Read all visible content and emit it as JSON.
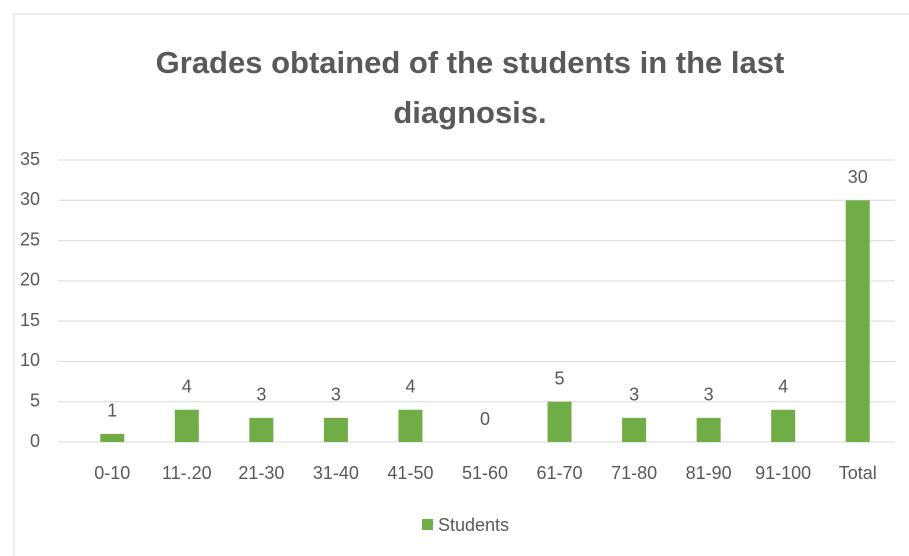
{
  "chart_data": {
    "type": "bar",
    "title": "Grades obtained of the students in the last diagnosis.",
    "categories": [
      "0-10",
      "11-.20",
      "21-30",
      "31-40",
      "41-50",
      "51-60",
      "61-70",
      "71-80",
      "81-90",
      "91-100",
      "Total"
    ],
    "series": [
      {
        "name": "Students",
        "color": "#70ad47",
        "values": [
          1,
          4,
          3,
          3,
          4,
          0,
          5,
          3,
          3,
          4,
          30
        ]
      }
    ],
    "ylim": [
      0,
      35
    ],
    "yticks": [
      0,
      5,
      10,
      15,
      20,
      25,
      30,
      35
    ],
    "grid": true,
    "legend": "bottom"
  }
}
